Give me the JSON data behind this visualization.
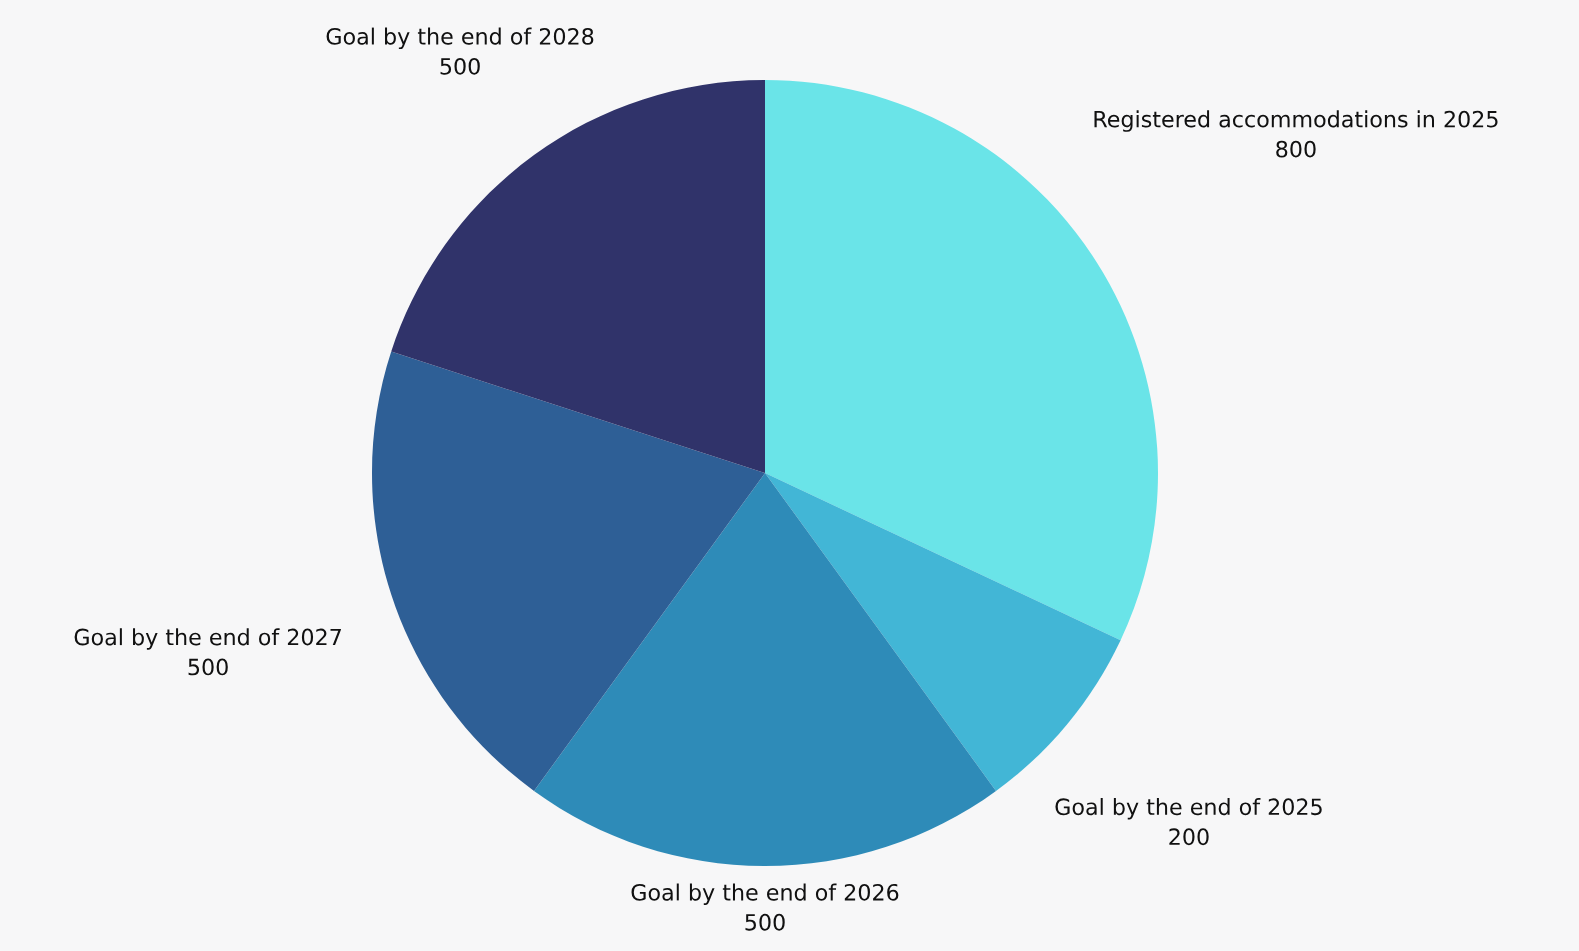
{
  "chart_data": {
    "type": "pie",
    "categories": [
      "Registered accommodations in 2025",
      "Goal by the end of 2025",
      "Goal by the end of 2026",
      "Goal by the end of 2027",
      "Goal by the end of 2028"
    ],
    "values": [
      800,
      200,
      500,
      500,
      500
    ],
    "colors": [
      "#6ae4e8",
      "#42b6d6",
      "#2e8bb8",
      "#2e5f96",
      "#30336a"
    ],
    "data_labels": true
  }
}
